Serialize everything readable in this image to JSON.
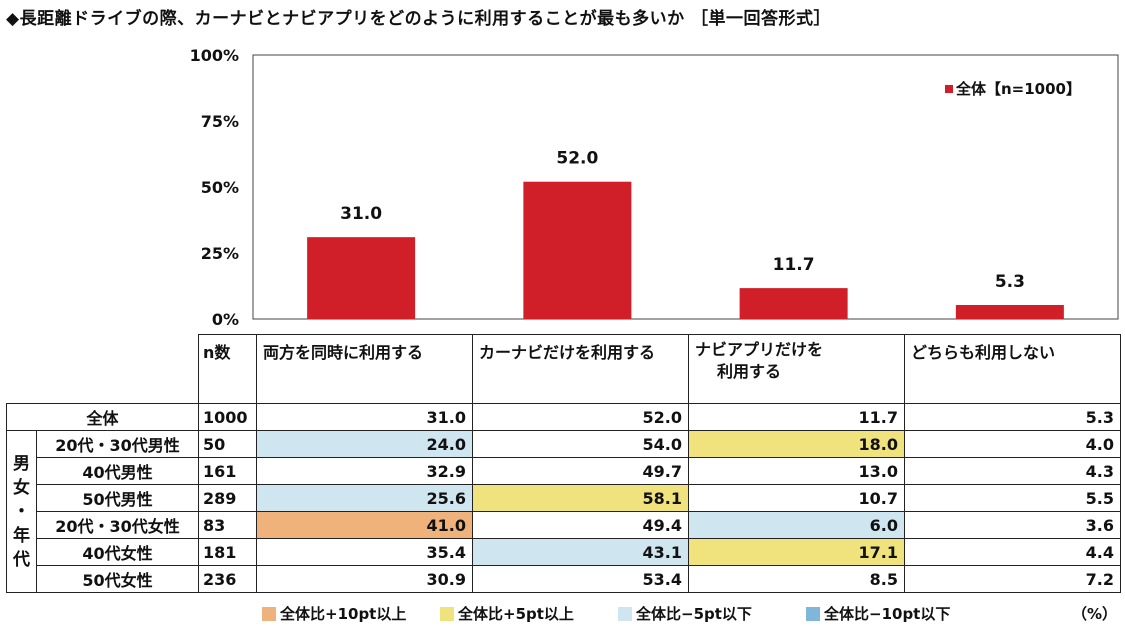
{
  "title": "◆長距離ドライブの際、カーナビとナビアプリをどのように利用することが最も多いか ［単一回答形式］",
  "colors": {
    "bar": "#d01f28",
    "orange": "#eeb27a",
    "yellow": "#f0e27c",
    "lightblue": "#cfe5ef",
    "blue": "#7fb6d9"
  },
  "chart_data": {
    "type": "bar",
    "categories": [
      "両方を同時に利用する",
      "カーナビだけを利用する",
      "ナビアプリだけを利用する",
      "どちらも利用しない"
    ],
    "series": [
      {
        "name": "全体【n=1000】",
        "values": [
          31.0,
          52.0,
          11.7,
          5.3
        ]
      }
    ],
    "data_labels": [
      "31.0",
      "52.0",
      "11.7",
      "5.3"
    ],
    "yticks": [
      "0%",
      "25%",
      "50%",
      "75%",
      "100%"
    ],
    "ylim": [
      0,
      100
    ],
    "legend": "top-right",
    "grid": false
  },
  "table": {
    "n_header": "n数",
    "col_headers": [
      "両方を同時に利用する",
      "カーナビだけを利用する",
      "ナビアプリだけを",
      "利用する",
      "どちらも利用しない"
    ],
    "group_label": [
      "男",
      "女",
      "・",
      "年",
      "代"
    ],
    "rows": [
      {
        "label": "全体",
        "n": "1000",
        "v": [
          "31.0",
          "52.0",
          "11.7",
          "5.3"
        ],
        "hl": [
          "",
          "",
          "",
          ""
        ]
      },
      {
        "label": "20代・30代男性",
        "n": "50",
        "v": [
          "24.0",
          "54.0",
          "18.0",
          "4.0"
        ],
        "hl": [
          "lightblue",
          "",
          "yellow",
          ""
        ]
      },
      {
        "label": "40代男性",
        "n": "161",
        "v": [
          "32.9",
          "49.7",
          "13.0",
          "4.3"
        ],
        "hl": [
          "",
          "",
          "",
          ""
        ]
      },
      {
        "label": "50代男性",
        "n": "289",
        "v": [
          "25.6",
          "58.1",
          "10.7",
          "5.5"
        ],
        "hl": [
          "lightblue",
          "yellow",
          "",
          ""
        ]
      },
      {
        "label": "20代・30代女性",
        "n": "83",
        "v": [
          "41.0",
          "49.4",
          "6.0",
          "3.6"
        ],
        "hl": [
          "orange",
          "",
          "lightblue",
          ""
        ]
      },
      {
        "label": "40代女性",
        "n": "181",
        "v": [
          "35.4",
          "43.1",
          "17.1",
          "4.4"
        ],
        "hl": [
          "",
          "lightblue",
          "yellow",
          ""
        ]
      },
      {
        "label": "50代女性",
        "n": "236",
        "v": [
          "30.9",
          "53.4",
          "8.5",
          "7.2"
        ],
        "hl": [
          "",
          "",
          "",
          ""
        ]
      }
    ]
  },
  "key": [
    {
      "label": "全体比+10pt以上",
      "color": "orange"
    },
    {
      "label": "全体比+5pt以上",
      "color": "yellow"
    },
    {
      "label": "全体比−5pt以下",
      "color": "lightblue"
    },
    {
      "label": "全体比−10pt以下",
      "color": "blue"
    }
  ],
  "unit": "（%）"
}
